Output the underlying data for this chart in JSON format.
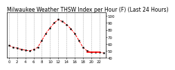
{
  "title": "Milwaukee Weather THSW Index per Hour (F) (Last 24 Hours)",
  "hours": [
    0,
    1,
    2,
    3,
    4,
    5,
    6,
    7,
    8,
    9,
    10,
    11,
    12,
    13,
    14,
    15,
    16,
    17,
    18,
    19,
    20,
    21,
    22,
    23
  ],
  "values": [
    58,
    55,
    54,
    52,
    51,
    50,
    52,
    55,
    65,
    75,
    83,
    90,
    95,
    92,
    88,
    82,
    75,
    65,
    55,
    50,
    48,
    48,
    48,
    47
  ],
  "line_color": "#ff0000",
  "marker_color": "#000000",
  "bg_color": "#ffffff",
  "plot_bg_color": "#ffffff",
  "grid_color": "#aaaaaa",
  "ylim": [
    40,
    105
  ],
  "yticks": [
    40,
    50,
    60,
    70,
    80,
    90,
    100
  ],
  "title_fontsize": 5.5,
  "tick_fontsize": 4.0,
  "xlabel": "",
  "ylabel": ""
}
